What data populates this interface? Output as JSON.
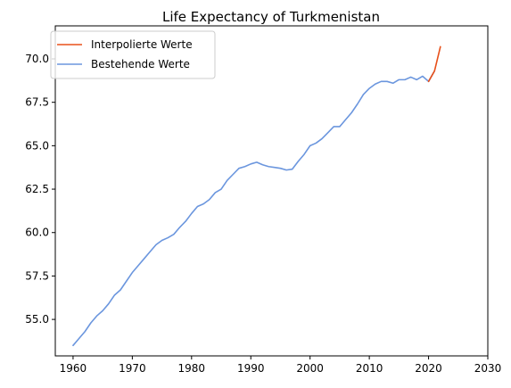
{
  "chart_data": {
    "type": "line",
    "title": "Life Expectancy of Turkmenistan",
    "xlabel": "",
    "ylabel": "",
    "xlim": [
      1957,
      2030
    ],
    "ylim": [
      52.9,
      71.9
    ],
    "xticks": [
      1960,
      1970,
      1980,
      1990,
      2000,
      2010,
      2020,
      2030
    ],
    "yticks": [
      55.0,
      57.5,
      60.0,
      62.5,
      65.0,
      67.5,
      70.0
    ],
    "grid": false,
    "legend": "top-left",
    "series": [
      {
        "name": "Interpolierte Werte",
        "color": "#e8501a",
        "x": [
          2020,
          2021,
          2022
        ],
        "y": [
          68.7,
          69.3,
          70.7
        ]
      },
      {
        "name": "Bestehende Werte",
        "color": "#6b96de",
        "x": [
          1960,
          1961,
          1962,
          1963,
          1964,
          1965,
          1966,
          1967,
          1968,
          1969,
          1970,
          1971,
          1972,
          1973,
          1974,
          1975,
          1976,
          1977,
          1978,
          1979,
          1980,
          1981,
          1982,
          1983,
          1984,
          1985,
          1986,
          1987,
          1988,
          1989,
          1990,
          1991,
          1992,
          1993,
          1994,
          1995,
          1996,
          1997,
          1998,
          1999,
          2000,
          2001,
          2002,
          2003,
          2004,
          2005,
          2006,
          2007,
          2008,
          2009,
          2010,
          2011,
          2012,
          2013,
          2014,
          2015,
          2016,
          2017,
          2018,
          2019,
          2020,
          2021
        ],
        "y": [
          53.5,
          53.9,
          54.3,
          54.8,
          55.2,
          55.5,
          55.9,
          56.4,
          56.7,
          57.2,
          57.7,
          58.1,
          58.5,
          58.9,
          59.3,
          59.55,
          59.7,
          59.9,
          60.3,
          60.65,
          61.1,
          61.5,
          61.65,
          61.9,
          62.3,
          62.5,
          63.0,
          63.35,
          63.7,
          63.8,
          63.95,
          64.05,
          63.9,
          63.8,
          63.75,
          63.7,
          63.6,
          63.65,
          64.1,
          64.5,
          65.0,
          65.15,
          65.4,
          65.75,
          66.1,
          66.1,
          66.5,
          66.9,
          67.4,
          67.95,
          68.3,
          68.55,
          68.7,
          68.7,
          68.6,
          68.8,
          68.8,
          68.95,
          68.8,
          69.0,
          68.7,
          69.3
        ]
      }
    ]
  }
}
